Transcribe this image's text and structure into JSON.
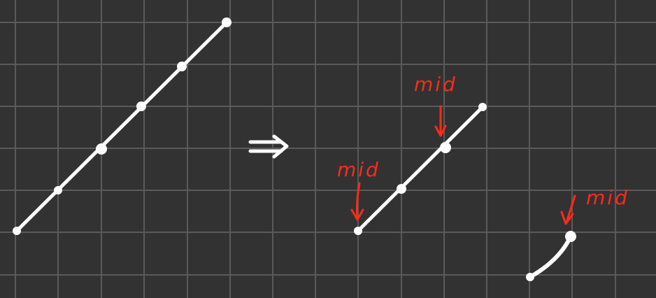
{
  "canvas": {
    "background": "#323232",
    "grid_color": "#5a5a5a",
    "stroke_color": "#ffffff",
    "annotation_color": "#ff2a1a"
  },
  "labels": {
    "mid_1": "mid",
    "mid_2": "mid",
    "mid_3": "mid"
  },
  "icons": {
    "implies": "double-arrow-icon",
    "pointer": "arrow-down-icon"
  }
}
